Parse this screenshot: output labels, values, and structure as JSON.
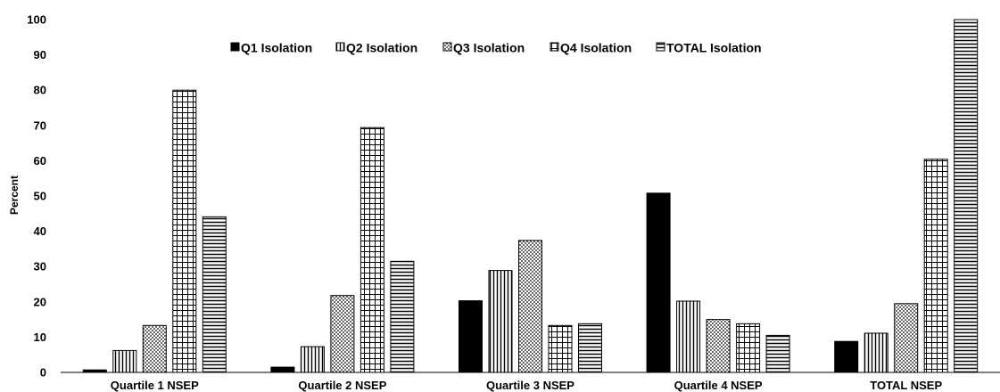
{
  "chart_data": {
    "type": "bar",
    "title": "",
    "xlabel": "",
    "ylabel": "Percent",
    "ylim": [
      0,
      100
    ],
    "yticks": [
      0,
      10,
      20,
      30,
      40,
      50,
      60,
      70,
      80,
      90,
      100
    ],
    "grid": false,
    "legend_position": "top",
    "categories": [
      "Quartile 1 NSEP",
      "Quartile 2 NSEP",
      "Quartile 3 NSEP",
      "Quartile 4 NSEP",
      "TOTAL NSEP"
    ],
    "series": [
      {
        "name": "Q1 Isolation",
        "pattern": "solid",
        "values": [
          0.7,
          1.5,
          20.3,
          50.8,
          8.8
        ]
      },
      {
        "name": "Q2 Isolation",
        "pattern": "vertical-lines",
        "values": [
          6.2,
          7.3,
          28.9,
          20.2,
          11.1
        ]
      },
      {
        "name": "Q3 Isolation",
        "pattern": "dots",
        "values": [
          13.3,
          21.8,
          37.4,
          15.0,
          19.5
        ]
      },
      {
        "name": "Q4 Isolation",
        "pattern": "grid",
        "values": [
          80.0,
          69.4,
          13.3,
          13.8,
          60.4
        ]
      },
      {
        "name": "TOTAL Isolation",
        "pattern": "horizontal-lines",
        "values": [
          44.1,
          31.5,
          13.8,
          10.5,
          100.0
        ]
      }
    ]
  }
}
